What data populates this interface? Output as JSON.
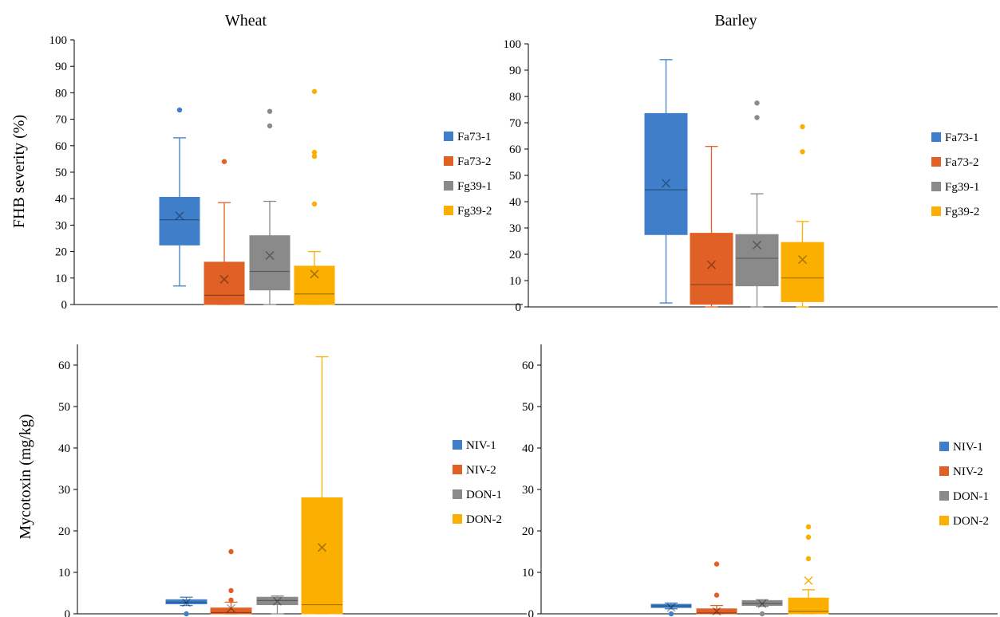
{
  "figure": {
    "row_labels": {
      "top": "FHB severity (%)",
      "bottom": "Mycotoxin (mg/kg)"
    }
  },
  "colors": {
    "blue": "#3f7ec8",
    "orange": "#e06026",
    "gray": "#8a8a8a",
    "yellow": "#fbaf00",
    "axis": "#000000"
  },
  "chart_data": [
    {
      "type": "box",
      "title": "Wheat",
      "ylabel": "FHB severity (%)",
      "ylim": [
        0,
        100
      ],
      "yticks": [
        0,
        10,
        20,
        30,
        40,
        50,
        60,
        70,
        80,
        90,
        100
      ],
      "legend_position": "right",
      "series": [
        {
          "name": "Fa73-1",
          "color": "#3f7ec8",
          "min": 7,
          "q1": 22.5,
          "median": 32,
          "q3": 40.5,
          "max": 63,
          "mean": 33.5,
          "outliers": [
            73.5
          ]
        },
        {
          "name": "Fa73-2",
          "color": "#e06026",
          "min": 0,
          "q1": 0,
          "median": 3.5,
          "q3": 16,
          "max": 38.5,
          "mean": 9.5,
          "outliers": [
            54
          ]
        },
        {
          "name": "Fg39-1",
          "color": "#8a8a8a",
          "min": 0,
          "q1": 5.5,
          "median": 12.5,
          "q3": 26,
          "max": 39,
          "mean": 18.5,
          "outliers": [
            67.5,
            73
          ]
        },
        {
          "name": "Fg39-2",
          "color": "#fbaf00",
          "min": 0,
          "q1": 0,
          "median": 4,
          "q3": 14.5,
          "max": 20,
          "mean": 11.5,
          "outliers": [
            38,
            56,
            57.5,
            80.5
          ]
        }
      ]
    },
    {
      "type": "box",
      "title": "Barley",
      "ylabel": "",
      "ylim": [
        0,
        100
      ],
      "yticks": [
        0,
        10,
        20,
        30,
        40,
        50,
        60,
        70,
        80,
        90,
        100
      ],
      "legend_position": "right",
      "series": [
        {
          "name": "Fa73-1",
          "color": "#3f7ec8",
          "min": 1.5,
          "q1": 27.5,
          "median": 44.5,
          "q3": 73.5,
          "max": 94,
          "mean": 47,
          "outliers": []
        },
        {
          "name": "Fa73-2",
          "color": "#e06026",
          "min": 0,
          "q1": 1,
          "median": 8.5,
          "q3": 28,
          "max": 61,
          "mean": 16,
          "outliers": []
        },
        {
          "name": "Fg39-1",
          "color": "#8a8a8a",
          "min": 0,
          "q1": 8,
          "median": 18.5,
          "q3": 27.5,
          "max": 43,
          "mean": 23.5,
          "outliers": [
            72,
            77.5
          ]
        },
        {
          "name": "Fg39-2",
          "color": "#fbaf00",
          "min": 0,
          "q1": 2,
          "median": 11,
          "q3": 24.5,
          "max": 32.5,
          "mean": 18,
          "outliers": [
            59,
            68.5
          ]
        }
      ]
    },
    {
      "type": "box",
      "title": "",
      "ylabel": "Mycotoxin (mg/kg)",
      "ylim": [
        0,
        65
      ],
      "yticks": [
        0,
        10,
        20,
        30,
        40,
        50,
        60
      ],
      "legend_position": "right",
      "series": [
        {
          "name": "NIV-1",
          "color": "#3f7ec8",
          "min": 2,
          "q1": 2.4,
          "median": 2.8,
          "q3": 3.4,
          "max": 4,
          "mean": 2.7,
          "outliers": [
            0
          ]
        },
        {
          "name": "NIV-2",
          "color": "#e06026",
          "min": 0,
          "q1": 0,
          "median": 0.3,
          "q3": 1.4,
          "max": 2.8,
          "mean": 1.3,
          "outliers": [
            3.3,
            5.6,
            15
          ]
        },
        {
          "name": "DON-1",
          "color": "#8a8a8a",
          "min": 0,
          "q1": 2.2,
          "median": 3.2,
          "q3": 4,
          "max": 4.3,
          "mean": 3,
          "outliers": []
        },
        {
          "name": "DON-2",
          "color": "#fbaf00",
          "min": 0,
          "q1": 0,
          "median": 2.2,
          "q3": 28,
          "max": 62,
          "mean": 16,
          "outliers": []
        }
      ]
    },
    {
      "type": "box",
      "title": "",
      "ylabel": "",
      "ylim": [
        0,
        65
      ],
      "yticks": [
        0,
        10,
        20,
        30,
        40,
        50,
        60
      ],
      "legend_position": "right",
      "series": [
        {
          "name": "NIV-1",
          "color": "#3f7ec8",
          "min": 1.2,
          "q1": 1.5,
          "median": 1.9,
          "q3": 2.3,
          "max": 2.6,
          "mean": 1.5,
          "outliers": [
            0
          ]
        },
        {
          "name": "NIV-2",
          "color": "#e06026",
          "min": 0,
          "q1": 0,
          "median": 0.2,
          "q3": 1.2,
          "max": 2,
          "mean": 0.6,
          "outliers": [
            4.5,
            12
          ]
        },
        {
          "name": "DON-1",
          "color": "#8a8a8a",
          "min": 1.8,
          "q1": 2,
          "median": 2.5,
          "q3": 3.2,
          "max": 3.4,
          "mean": 2.4,
          "outliers": [
            0
          ]
        },
        {
          "name": "DON-2",
          "color": "#fbaf00",
          "min": 0,
          "q1": 0,
          "median": 0.6,
          "q3": 3.8,
          "max": 5.8,
          "mean": 8,
          "outliers": [
            13.3,
            18.5,
            21
          ]
        }
      ]
    }
  ]
}
